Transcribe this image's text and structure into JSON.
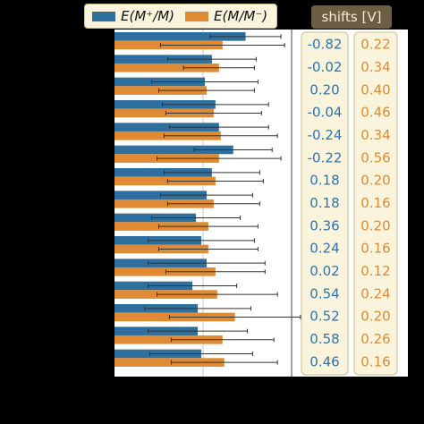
{
  "legend": {
    "series1_label": "E(M⁺/M)",
    "series2_label": "E(M/M⁻)"
  },
  "shifts_header": "shifts [V]",
  "colors": {
    "series1": "#2e6f9e",
    "series2": "#e08a33",
    "col1_text": "#2f74ad",
    "col2_text": "#e08a33",
    "panel_bg": "#fbf4dc",
    "panel_border": "#c9bd93"
  },
  "chart_data": {
    "type": "bar",
    "orientation": "horizontal",
    "grid": "vertical",
    "xlim": [
      0,
      1
    ],
    "series": [
      {
        "name": "E(M⁺/M)",
        "values": [
          0.74,
          0.55,
          0.51,
          0.57,
          0.59,
          0.67,
          0.55,
          0.52,
          0.46,
          0.49,
          0.52,
          0.44,
          0.47,
          0.47,
          0.49
        ],
        "errors": [
          0.2,
          0.25,
          0.3,
          0.3,
          0.28,
          0.22,
          0.27,
          0.26,
          0.25,
          0.3,
          0.33,
          0.25,
          0.3,
          0.28,
          0.29
        ]
      },
      {
        "name": "E(M/M⁻)",
        "values": [
          0.61,
          0.59,
          0.52,
          0.56,
          0.6,
          0.59,
          0.57,
          0.56,
          0.53,
          0.53,
          0.57,
          0.58,
          0.68,
          0.61,
          0.62
        ],
        "errors": [
          0.35,
          0.2,
          0.27,
          0.27,
          0.32,
          0.35,
          0.27,
          0.26,
          0.28,
          0.28,
          0.28,
          0.34,
          0.37,
          0.29,
          0.3
        ]
      }
    ],
    "shifts_col1": [
      "-0.82",
      "-0.02",
      "0.20",
      "-0.04",
      "-0.24",
      "-0.22",
      "0.18",
      "0.18",
      "0.36",
      "0.24",
      "0.02",
      "0.54",
      "0.52",
      "0.58",
      "0.46"
    ],
    "shifts_col2": [
      "0.22",
      "0.34",
      "0.40",
      "0.46",
      "0.34",
      "0.56",
      "0.20",
      "0.16",
      "0.20",
      "0.16",
      "0.12",
      "0.24",
      "0.20",
      "0.26",
      "0.16"
    ]
  }
}
